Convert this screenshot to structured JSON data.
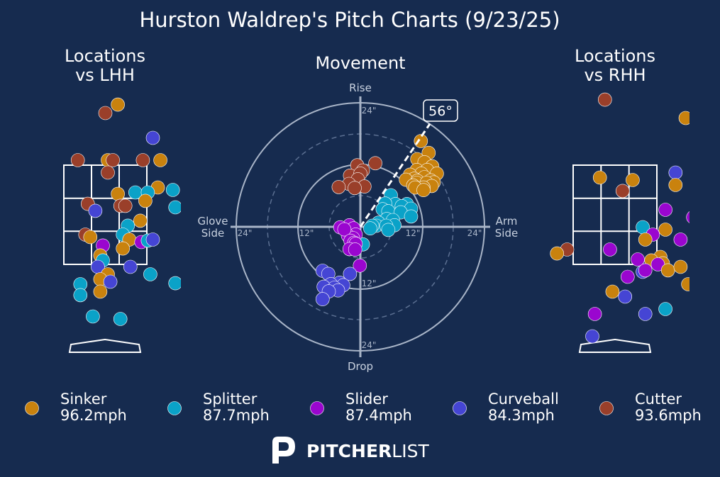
{
  "title": "Hurston Waldrep's Pitch Charts (9/23/25)",
  "panels": {
    "lhh_title_line1": "Locations",
    "lhh_title_line2": "vs LHH",
    "movement_title": "Movement",
    "rhh_title_line1": "Locations",
    "rhh_title_line2": "vs RHH"
  },
  "movement_axis": {
    "top": "Rise",
    "bottom": "Drop",
    "left_line1": "Glove",
    "left_line2": "Side",
    "right_line1": "Arm",
    "right_line2": "Side",
    "ring_labels": [
      "12\"",
      "24\""
    ],
    "arm_angle_label": "56°"
  },
  "legend": [
    {
      "name": "Sinker",
      "velo": "96.2mph",
      "color": "#c9820e"
    },
    {
      "name": "Splitter",
      "velo": "87.7mph",
      "color": "#0aa2c8"
    },
    {
      "name": "Slider",
      "velo": "87.4mph",
      "color": "#9a06cf"
    },
    {
      "name": "Curveball",
      "velo": "84.3mph",
      "color": "#4545d4"
    },
    {
      "name": "Cutter",
      "velo": "93.6mph",
      "color": "#9a3f2a"
    }
  ],
  "brand": {
    "bold": "PITCHER",
    "light": "LIST"
  },
  "colors": {
    "background": "#162b4f",
    "Sinker": "#c9820e",
    "Splitter": "#0aa2c8",
    "Slider": "#9a06cf",
    "Curveball": "#4545d4",
    "Cutter": "#9a3f2a"
  },
  "chart_data": [
    {
      "type": "scatter",
      "title": "Locations vs LHH",
      "xlabel": "",
      "ylabel": "",
      "grid": "strike zone 3x3",
      "points": [
        {
          "pitch": "Cutter",
          "x": 0.0,
          "y": 4.55
        },
        {
          "pitch": "Sinker",
          "x": 0.25,
          "y": 4.72
        },
        {
          "pitch": "Curveball",
          "x": 0.95,
          "y": 4.05
        },
        {
          "pitch": "Cutter",
          "x": -0.55,
          "y": 3.6
        },
        {
          "pitch": "Sinker",
          "x": 0.05,
          "y": 3.6
        },
        {
          "pitch": "Cutter",
          "x": 0.15,
          "y": 3.6
        },
        {
          "pitch": "Cutter",
          "x": 0.75,
          "y": 3.6
        },
        {
          "pitch": "Sinker",
          "x": 1.1,
          "y": 3.6
        },
        {
          "pitch": "Cutter",
          "x": 0.05,
          "y": 3.35
        },
        {
          "pitch": "Sinker",
          "x": 1.05,
          "y": 3.05
        },
        {
          "pitch": "Splitter",
          "x": 1.35,
          "y": 3.0
        },
        {
          "pitch": "Sinker",
          "x": 0.25,
          "y": 2.92
        },
        {
          "pitch": "Splitter",
          "x": 0.6,
          "y": 2.95
        },
        {
          "pitch": "Splitter",
          "x": 0.85,
          "y": 2.95
        },
        {
          "pitch": "Cutter",
          "x": -0.35,
          "y": 2.72
        },
        {
          "pitch": "Cutter",
          "x": 0.3,
          "y": 2.68
        },
        {
          "pitch": "Cutter",
          "x": 0.4,
          "y": 2.68
        },
        {
          "pitch": "Sinker",
          "x": 0.8,
          "y": 2.78
        },
        {
          "pitch": "Splitter",
          "x": 1.4,
          "y": 2.65
        },
        {
          "pitch": "Curveball",
          "x": -0.2,
          "y": 2.58
        },
        {
          "pitch": "Sinker",
          "x": 0.7,
          "y": 2.38
        },
        {
          "pitch": "Splitter",
          "x": 0.45,
          "y": 2.28
        },
        {
          "pitch": "Cutter",
          "x": -0.4,
          "y": 2.1
        },
        {
          "pitch": "Sinker",
          "x": -0.3,
          "y": 2.05
        },
        {
          "pitch": "Splitter",
          "x": 0.35,
          "y": 2.1
        },
        {
          "pitch": "Sinker",
          "x": 0.48,
          "y": 2.0
        },
        {
          "pitch": "Slider",
          "x": 0.72,
          "y": 1.95
        },
        {
          "pitch": "Splitter",
          "x": 0.85,
          "y": 1.98
        },
        {
          "pitch": "Curveball",
          "x": 0.95,
          "y": 2.0
        },
        {
          "pitch": "Slider",
          "x": -0.05,
          "y": 1.88
        },
        {
          "pitch": "Sinker",
          "x": 0.35,
          "y": 1.82
        },
        {
          "pitch": "Sinker",
          "x": -0.1,
          "y": 1.68
        },
        {
          "pitch": "Splitter",
          "x": -0.05,
          "y": 1.58
        },
        {
          "pitch": "Curveball",
          "x": 0.5,
          "y": 1.45
        },
        {
          "pitch": "Curveball",
          "x": -0.15,
          "y": 1.45
        },
        {
          "pitch": "Sinker",
          "x": 0.05,
          "y": 1.3
        },
        {
          "pitch": "Sinker",
          "x": -0.1,
          "y": 1.2
        },
        {
          "pitch": "Curveball",
          "x": 0.1,
          "y": 1.15
        },
        {
          "pitch": "Splitter",
          "x": 0.9,
          "y": 1.3
        },
        {
          "pitch": "Splitter",
          "x": -0.5,
          "y": 1.1
        },
        {
          "pitch": "Splitter",
          "x": 1.4,
          "y": 1.12
        },
        {
          "pitch": "Sinker",
          "x": -0.1,
          "y": 0.95
        },
        {
          "pitch": "Splitter",
          "x": -0.5,
          "y": 0.88
        },
        {
          "pitch": "Splitter",
          "x": -0.25,
          "y": 0.45
        },
        {
          "pitch": "Splitter",
          "x": 0.3,
          "y": 0.4
        }
      ]
    },
    {
      "type": "scatter",
      "title": "Movement",
      "xlabel": "Glove Side / Arm Side",
      "ylabel": "Drop / Rise",
      "xlim": [
        -24,
        24
      ],
      "ylim": [
        -24,
        24
      ],
      "ring_ticks": [
        12,
        24
      ],
      "arm_angle_deg": 56,
      "points": [
        {
          "pitch": "Sinker",
          "x": 11.7,
          "y": 16.6
        },
        {
          "pitch": "Sinker",
          "x": 13.2,
          "y": 14.3
        },
        {
          "pitch": "Sinker",
          "x": 11.0,
          "y": 13.1
        },
        {
          "pitch": "Sinker",
          "x": 12.4,
          "y": 12.5
        },
        {
          "pitch": "Sinker",
          "x": 13.9,
          "y": 11.7
        },
        {
          "pitch": "Sinker",
          "x": 10.9,
          "y": 11.0
        },
        {
          "pitch": "Sinker",
          "x": 12.9,
          "y": 11.0
        },
        {
          "pitch": "Sinker",
          "x": 11.8,
          "y": 10.3
        },
        {
          "pitch": "Sinker",
          "x": 14.8,
          "y": 10.3
        },
        {
          "pitch": "Sinker",
          "x": 9.6,
          "y": 10.1
        },
        {
          "pitch": "Sinker",
          "x": 12.4,
          "y": 9.6
        },
        {
          "pitch": "Sinker",
          "x": 10.4,
          "y": 9.3
        },
        {
          "pitch": "Sinker",
          "x": 13.6,
          "y": 9.0
        },
        {
          "pitch": "Sinker",
          "x": 8.8,
          "y": 9.1
        },
        {
          "pitch": "Sinker",
          "x": 11.0,
          "y": 8.9
        },
        {
          "pitch": "Sinker",
          "x": 14.2,
          "y": 8.6
        },
        {
          "pitch": "Sinker",
          "x": 10.9,
          "y": 8.5
        },
        {
          "pitch": "Sinker",
          "x": 12.8,
          "y": 8.5
        },
        {
          "pitch": "Sinker",
          "x": 10.2,
          "y": 8.0
        },
        {
          "pitch": "Sinker",
          "x": 13.8,
          "y": 7.9
        },
        {
          "pitch": "Sinker",
          "x": 12.2,
          "y": 7.6
        },
        {
          "pitch": "Sinker",
          "x": 10.6,
          "y": 7.6
        },
        {
          "pitch": "Sinker",
          "x": 12.2,
          "y": 7.1
        },
        {
          "pitch": "Cutter",
          "x": 2.9,
          "y": 12.3
        },
        {
          "pitch": "Cutter",
          "x": -0.6,
          "y": 11.9
        },
        {
          "pitch": "Cutter",
          "x": 0.5,
          "y": 10.9
        },
        {
          "pitch": "Cutter",
          "x": -2.0,
          "y": 9.9
        },
        {
          "pitch": "Cutter",
          "x": 0.0,
          "y": 10.3
        },
        {
          "pitch": "Cutter",
          "x": -0.5,
          "y": 9.2
        },
        {
          "pitch": "Cutter",
          "x": -2.2,
          "y": 8.3
        },
        {
          "pitch": "Cutter",
          "x": 0.8,
          "y": 7.8
        },
        {
          "pitch": "Cutter",
          "x": -1.1,
          "y": 7.5
        },
        {
          "pitch": "Cutter",
          "x": -4.2,
          "y": 7.7
        },
        {
          "pitch": "Splitter",
          "x": 5.9,
          "y": 6.1
        },
        {
          "pitch": "Splitter",
          "x": 6.8,
          "y": 4.4
        },
        {
          "pitch": "Splitter",
          "x": 4.8,
          "y": 4.5
        },
        {
          "pitch": "Splitter",
          "x": 4.3,
          "y": 3.4
        },
        {
          "pitch": "Splitter",
          "x": 5.4,
          "y": 3.0
        },
        {
          "pitch": "Splitter",
          "x": 9.0,
          "y": 4.4
        },
        {
          "pitch": "Splitter",
          "x": 8.0,
          "y": 4.0
        },
        {
          "pitch": "Splitter",
          "x": 9.8,
          "y": 3.5
        },
        {
          "pitch": "Splitter",
          "x": 7.8,
          "y": 2.8
        },
        {
          "pitch": "Splitter",
          "x": 9.8,
          "y": 2.0
        },
        {
          "pitch": "Splitter",
          "x": 5.1,
          "y": 1.5
        },
        {
          "pitch": "Splitter",
          "x": 6.3,
          "y": 1.3
        },
        {
          "pitch": "Splitter",
          "x": 3.5,
          "y": 0.8
        },
        {
          "pitch": "Splitter",
          "x": 3.1,
          "y": 0.2
        },
        {
          "pitch": "Splitter",
          "x": 6.6,
          "y": 0.3
        },
        {
          "pitch": "Splitter",
          "x": 5.0,
          "y": 0.2
        },
        {
          "pitch": "Splitter",
          "x": 2.3,
          "y": 0.2
        },
        {
          "pitch": "Splitter",
          "x": 1.9,
          "y": -0.3
        },
        {
          "pitch": "Splitter",
          "x": 5.4,
          "y": -0.6
        },
        {
          "pitch": "Splitter",
          "x": 0.5,
          "y": -3.4
        },
        {
          "pitch": "Slider",
          "x": -2.1,
          "y": 0.3
        },
        {
          "pitch": "Slider",
          "x": -3.9,
          "y": -0.1
        },
        {
          "pitch": "Slider",
          "x": -1.3,
          "y": -0.3
        },
        {
          "pitch": "Slider",
          "x": -0.9,
          "y": -1.5
        },
        {
          "pitch": "Slider",
          "x": -2.4,
          "y": -1.7
        },
        {
          "pitch": "Slider",
          "x": -1.4,
          "y": -2.2
        },
        {
          "pitch": "Slider",
          "x": -3.1,
          "y": -0.5
        },
        {
          "pitch": "Slider",
          "x": -1.9,
          "y": -2.7
        },
        {
          "pitch": "Slider",
          "x": -1.2,
          "y": -3.1
        },
        {
          "pitch": "Slider",
          "x": -0.9,
          "y": -3.3
        },
        {
          "pitch": "Slider",
          "x": -2.1,
          "y": -4.3
        },
        {
          "pitch": "Slider",
          "x": -1.0,
          "y": -4.4
        },
        {
          "pitch": "Slider",
          "x": -0.1,
          "y": -7.5
        },
        {
          "pitch": "Curveball",
          "x": -7.3,
          "y": -8.5
        },
        {
          "pitch": "Curveball",
          "x": -6.2,
          "y": -9.1
        },
        {
          "pitch": "Curveball",
          "x": -2.0,
          "y": -9.1
        },
        {
          "pitch": "Curveball",
          "x": -4.0,
          "y": -10.8
        },
        {
          "pitch": "Curveball",
          "x": -5.7,
          "y": -11.1
        },
        {
          "pitch": "Curveball",
          "x": -3.3,
          "y": -11.3
        },
        {
          "pitch": "Curveball",
          "x": -7.1,
          "y": -11.6
        },
        {
          "pitch": "Curveball",
          "x": -5.0,
          "y": -11.8
        },
        {
          "pitch": "Curveball",
          "x": -4.3,
          "y": -12.3
        },
        {
          "pitch": "Curveball",
          "x": -6.1,
          "y": -12.5
        },
        {
          "pitch": "Curveball",
          "x": -7.3,
          "y": -14.0
        }
      ]
    },
    {
      "type": "scatter",
      "title": "Locations vs RHH",
      "xlabel": "",
      "ylabel": "",
      "grid": "strike zone 3x3",
      "points": [
        {
          "pitch": "Cutter",
          "x": -0.2,
          "y": 4.82
        },
        {
          "pitch": "Sinker",
          "x": 1.4,
          "y": 4.45
        },
        {
          "pitch": "Sinker",
          "x": 2.2,
          "y": 4.45
        },
        {
          "pitch": "Curveball",
          "x": 1.2,
          "y": 3.35
        },
        {
          "pitch": "Sinker",
          "x": -0.3,
          "y": 3.25
        },
        {
          "pitch": "Sinker",
          "x": 0.35,
          "y": 3.2
        },
        {
          "pitch": "Sinker",
          "x": 1.2,
          "y": 3.1
        },
        {
          "pitch": "Cutter",
          "x": 0.15,
          "y": 2.98
        },
        {
          "pitch": "Curveball",
          "x": 1.9,
          "y": 2.8
        },
        {
          "pitch": "Slider",
          "x": 1.0,
          "y": 2.6
        },
        {
          "pitch": "Slider",
          "x": 1.55,
          "y": 2.45
        },
        {
          "pitch": "Splitter",
          "x": 0.55,
          "y": 2.25
        },
        {
          "pitch": "Slider",
          "x": 0.75,
          "y": 2.1
        },
        {
          "pitch": "Sinker",
          "x": 1.0,
          "y": 2.2
        },
        {
          "pitch": "Sinker",
          "x": 0.6,
          "y": 2.0
        },
        {
          "pitch": "Slider",
          "x": 1.3,
          "y": 2.0
        },
        {
          "pitch": "Cutter",
          "x": -0.95,
          "y": 1.8
        },
        {
          "pitch": "Sinker",
          "x": -1.15,
          "y": 1.72
        },
        {
          "pitch": "Slider",
          "x": -0.1,
          "y": 1.8
        },
        {
          "pitch": "Slider",
          "x": 0.45,
          "y": 1.6
        },
        {
          "pitch": "Sinker",
          "x": 0.9,
          "y": 1.65
        },
        {
          "pitch": "Sinker",
          "x": 0.72,
          "y": 1.58
        },
        {
          "pitch": "Sinker",
          "x": 0.95,
          "y": 1.52
        },
        {
          "pitch": "Slider",
          "x": 0.85,
          "y": 1.5
        },
        {
          "pitch": "Curveball",
          "x": 0.55,
          "y": 1.35
        },
        {
          "pitch": "Slider",
          "x": 0.6,
          "y": 1.38
        },
        {
          "pitch": "Slider",
          "x": 0.25,
          "y": 1.25
        },
        {
          "pitch": "Sinker",
          "x": 1.05,
          "y": 1.38
        },
        {
          "pitch": "Sinker",
          "x": 1.45,
          "y": 1.1
        },
        {
          "pitch": "Sinker",
          "x": 1.3,
          "y": 1.45
        },
        {
          "pitch": "Sinker",
          "x": -0.05,
          "y": 0.95
        },
        {
          "pitch": "Curveball",
          "x": 0.2,
          "y": 0.85
        },
        {
          "pitch": "Splitter",
          "x": 1.0,
          "y": 0.6
        },
        {
          "pitch": "Curveball",
          "x": 0.6,
          "y": 0.5
        },
        {
          "pitch": "Slider",
          "x": -0.4,
          "y": 0.5
        },
        {
          "pitch": "Curveball",
          "x": -0.45,
          "y": 0.05
        }
      ]
    }
  ]
}
